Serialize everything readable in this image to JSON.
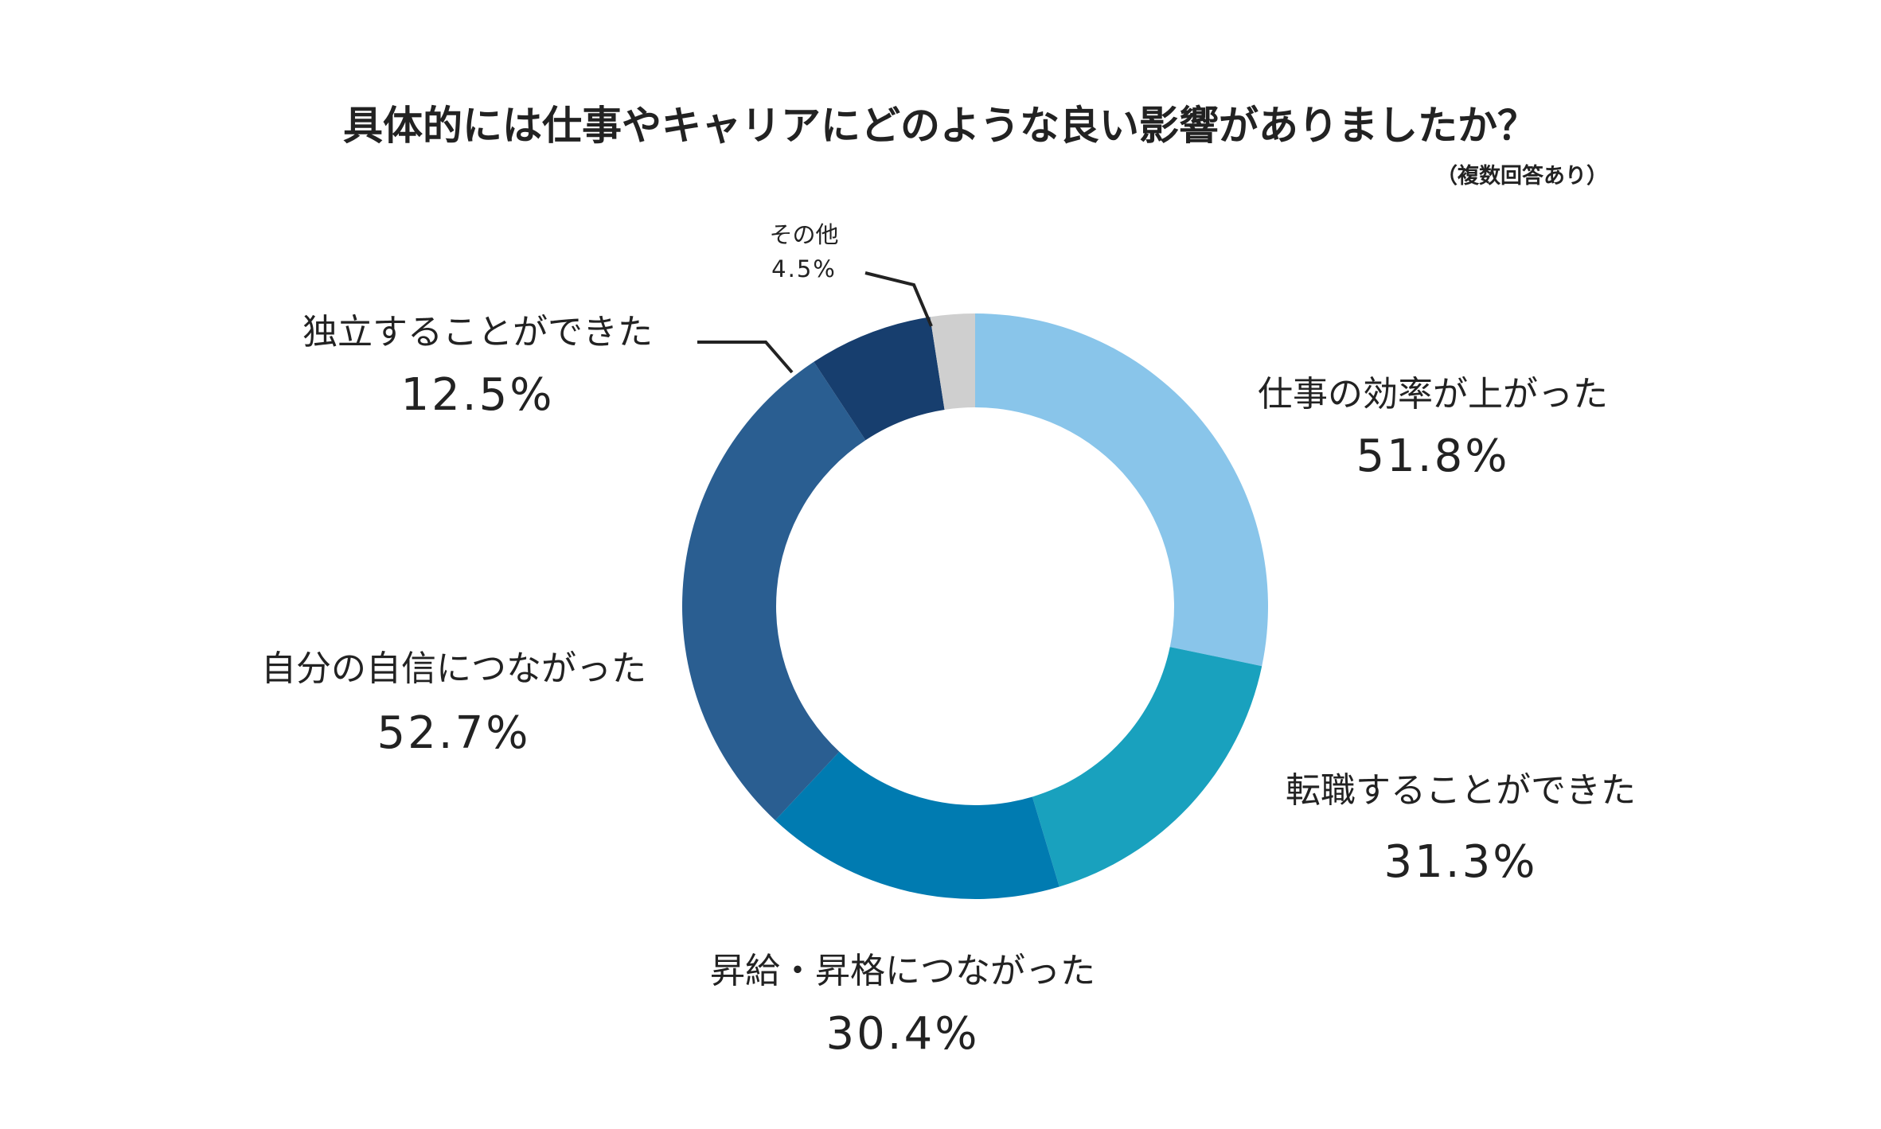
{
  "chart_data": {
    "type": "pie",
    "variant": "donut",
    "title": "具体的には仕事やキャリアにどのような良い影響がありましたか？",
    "subtitle": "（複数回答あり）",
    "unit": "%",
    "slices": [
      {
        "label": "仕事の効率が上がった",
        "value": 51.8,
        "value_label": "51.8%",
        "color": "#89C5EA"
      },
      {
        "label": "転職することができた",
        "value": 31.3,
        "value_label": "31.3%",
        "color": "#19A1BE"
      },
      {
        "label": "昇給・昇格につながった",
        "value": 30.4,
        "value_label": "30.4%",
        "color": "#007BB1"
      },
      {
        "label": "自分の自信につながった",
        "value": 52.7,
        "value_label": "52.7%",
        "color": "#2A5E91"
      },
      {
        "label": "独立することができた",
        "value": 12.5,
        "value_label": "12.5%",
        "color": "#173E6E"
      },
      {
        "label": "その他",
        "value": 4.5,
        "value_label": "4.5%",
        "color": "#CFCFCF"
      }
    ]
  }
}
